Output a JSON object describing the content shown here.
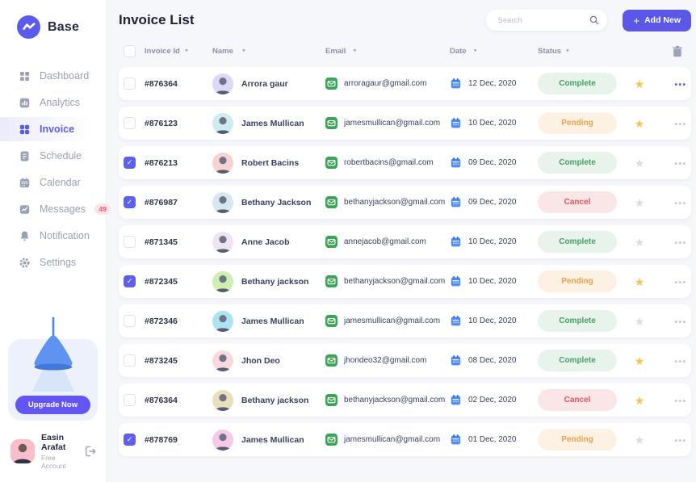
{
  "brand": {
    "name": "Base"
  },
  "sidebar": {
    "items": [
      {
        "label": "Dashboard",
        "icon_key": "dashboard",
        "active": false
      },
      {
        "label": "Analytics",
        "icon_key": "analytics",
        "active": false
      },
      {
        "label": "Invoice",
        "icon_key": "invoice",
        "active": true
      },
      {
        "label": "Schedule",
        "icon_key": "schedule",
        "active": false
      },
      {
        "label": "Calendar",
        "icon_key": "calendar",
        "active": false
      },
      {
        "label": "Messages",
        "icon_key": "messages",
        "active": false,
        "badge": "49"
      },
      {
        "label": "Notification",
        "icon_key": "notification",
        "active": false
      },
      {
        "label": "Settings",
        "icon_key": "settings",
        "active": false
      }
    ],
    "upgrade": {
      "button_label": "Upgrade Now"
    },
    "user": {
      "name": "Easin Arafat",
      "plan": "Free Account"
    }
  },
  "header": {
    "title": "Invoice List",
    "search_placeholder": "Search",
    "add_new_label": "Add New"
  },
  "table": {
    "columns": [
      "Invoice Id",
      "Name",
      "Email",
      "Date",
      "Status"
    ],
    "rows": [
      {
        "id": "#876364",
        "name": "Arrora gaur",
        "email": "arroragaur@gmail.com",
        "date": "12 Dec, 2020",
        "status": "Complete",
        "checked": false,
        "starred": true,
        "avatar_bg": "#DDD8F8",
        "menu_accent": true
      },
      {
        "id": "#876123",
        "name": "James Mullican",
        "email": "jamesmullican@gmail.com",
        "date": "10 Dec, 2020",
        "status": "Pending",
        "checked": false,
        "starred": true,
        "avatar_bg": "#CDEDF1",
        "menu_accent": false
      },
      {
        "id": "#876213",
        "name": "Robert Bacins",
        "email": "robertbacins@gmail.com",
        "date": "09 Dec, 2020",
        "status": "Complete",
        "checked": true,
        "starred": false,
        "avatar_bg": "#F7D2D2",
        "menu_accent": false
      },
      {
        "id": "#876987",
        "name": "Bethany Jackson",
        "email": "bethanyjackson@gmail.com",
        "date": "09 Dec, 2020",
        "status": "Cancel",
        "checked": true,
        "starred": false,
        "avatar_bg": "#D7E7F2",
        "menu_accent": false
      },
      {
        "id": "#871345",
        "name": "Anne Jacob",
        "email": "annejacob@gmail.com",
        "date": "10 Dec, 2020",
        "status": "Complete",
        "checked": false,
        "starred": false,
        "avatar_bg": "#EFE4F2",
        "menu_accent": false
      },
      {
        "id": "#872345",
        "name": "Bethany jackson",
        "email": "bethanyjackson@gmail.com",
        "date": "10 Dec, 2020",
        "status": "Pending",
        "checked": true,
        "starred": true,
        "avatar_bg": "#CDEFAF",
        "menu_accent": false
      },
      {
        "id": "#872346",
        "name": "James Mullican",
        "email": "jamesmullican@gmail.com",
        "date": "10 Dec, 2020",
        "status": "Complete",
        "checked": false,
        "starred": false,
        "avatar_bg": "#ABE3F2",
        "menu_accent": false
      },
      {
        "id": "#873245",
        "name": "Jhon Deo",
        "email": "jhondeo32@gmail.com",
        "date": "08 Dec, 2020",
        "status": "Complete",
        "checked": false,
        "starred": true,
        "avatar_bg": "#F8D9DD",
        "menu_accent": false
      },
      {
        "id": "#876364",
        "name": "Bethany jackson",
        "email": "bethanyjackson@gmail.com",
        "date": "02 Dec, 2020",
        "status": "Cancel",
        "checked": false,
        "starred": true,
        "avatar_bg": "#EADFBC",
        "menu_accent": false
      },
      {
        "id": "#878769",
        "name": "James Mullican",
        "email": "jamesmullican@gmail.com",
        "date": "01 Dec, 2020",
        "status": "Pending",
        "checked": true,
        "starred": false,
        "avatar_bg": "#F7C9E7",
        "menu_accent": false
      }
    ]
  },
  "icons": {
    "plus": "+",
    "sort_arrow": "▼",
    "check_mark": "✓",
    "star": "★",
    "row_menu": "•••"
  },
  "colors": {
    "accent": "#5B58E8",
    "sidebar_active": "#5B5BF0",
    "checkbox_checked": "#5D5FEF",
    "star_active": "#F6C250",
    "star_inactive": "#D9DCE5",
    "menu_dots_default": "#C3C7D3",
    "menu_dots_accent": "#5B5BF0",
    "messages_badge_bg": "#FBE4E7",
    "messages_badge_text": "#E85A6B",
    "status": {
      "Complete": {
        "bg": "#E7F3EB",
        "text": "#47A164"
      },
      "Pending": {
        "bg": "#FDF1E3",
        "text": "#EFA04C"
      },
      "Cancel": {
        "bg": "#FAE5E7",
        "text": "#DF5560"
      }
    }
  }
}
